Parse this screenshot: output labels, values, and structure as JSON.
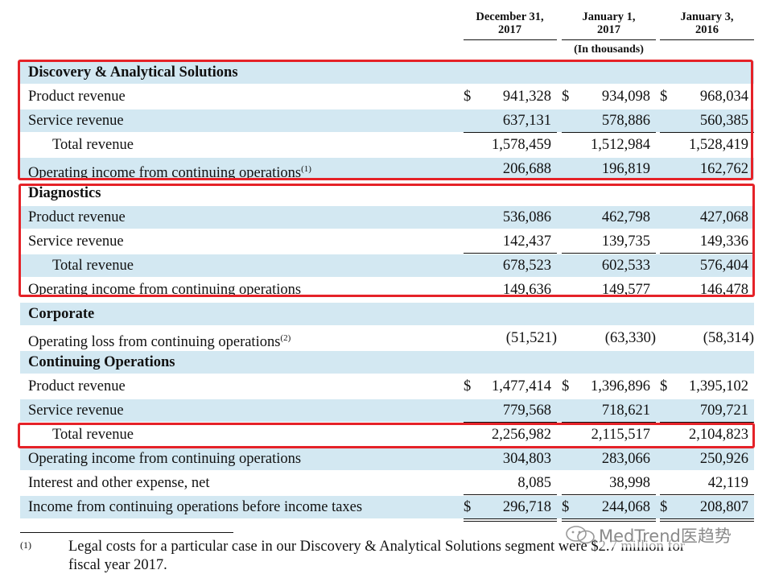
{
  "header": {
    "columns": [
      {
        "line1": "December 31,",
        "line2": "2017"
      },
      {
        "line1": "January 1,",
        "line2": "2017"
      },
      {
        "line1": "January 3,",
        "line2": "2016"
      }
    ],
    "unit": "(In thousands)"
  },
  "table": {
    "rows": [
      {
        "label": "Discovery & Analytical Solutions",
        "bold": true,
        "shaded": true
      },
      {
        "label": "Product revenue",
        "currency": "$",
        "values": [
          "941,328",
          "934,098",
          "968,034"
        ]
      },
      {
        "label": "Service revenue",
        "shaded": true,
        "underline": "single",
        "values": [
          "637,131",
          "578,886",
          "560,385"
        ]
      },
      {
        "label": "Total revenue",
        "indent": true,
        "values": [
          "1,578,459",
          "1,512,984",
          "1,528,419"
        ]
      },
      {
        "label": "Operating income from continuing operations",
        "note": "(1)",
        "shaded": true,
        "values": [
          "206,688",
          "196,819",
          "162,762"
        ]
      },
      {
        "label": "Diagnostics",
        "bold": true
      },
      {
        "label": "Product revenue",
        "shaded": true,
        "values": [
          "536,086",
          "462,798",
          "427,068"
        ]
      },
      {
        "label": "Service revenue",
        "underline": "single",
        "values": [
          "142,437",
          "139,735",
          "149,336"
        ]
      },
      {
        "label": "Total revenue",
        "indent": true,
        "shaded": true,
        "values": [
          "678,523",
          "602,533",
          "576,404"
        ]
      },
      {
        "label": "Operating income from continuing operations",
        "values": [
          "149,636",
          "149,577",
          "146,478"
        ]
      },
      {
        "label": "Corporate",
        "bold": true,
        "shaded": true
      },
      {
        "label": "Operating loss from continuing operations",
        "note": "(2)",
        "values": [
          "(51,521)",
          "(63,330)",
          "(58,314)"
        ]
      },
      {
        "label": "Continuing Operations",
        "bold": true,
        "shaded": true
      },
      {
        "label": "Product revenue",
        "currency": "$",
        "values": [
          "1,477,414",
          "1,396,896",
          "1,395,102"
        ]
      },
      {
        "label": "Service revenue",
        "shaded": true,
        "underline": "single",
        "values": [
          "779,568",
          "718,621",
          "709,721"
        ]
      },
      {
        "label": "Total revenue",
        "indent": true,
        "values": [
          "2,256,982",
          "2,115,517",
          "2,104,823"
        ]
      },
      {
        "label": "Operating income from continuing operations",
        "shaded": true,
        "values": [
          "304,803",
          "283,066",
          "250,926"
        ]
      },
      {
        "label": "Interest and other expense, net",
        "underline": "single",
        "values": [
          "8,085",
          "38,998",
          "42,119"
        ]
      },
      {
        "label": "Income from continuing operations before income taxes",
        "shaded": true,
        "currency": "$",
        "underline": "double",
        "values": [
          "296,718",
          "244,068",
          "208,807"
        ]
      }
    ]
  },
  "footnote": {
    "marker": "(1)",
    "line1": "Legal costs for a particular case in our Discovery & Analytical Solutions segment were $2.7 million for",
    "line2": "fiscal year 2017."
  },
  "watermark": "MedTrend医趋势"
}
